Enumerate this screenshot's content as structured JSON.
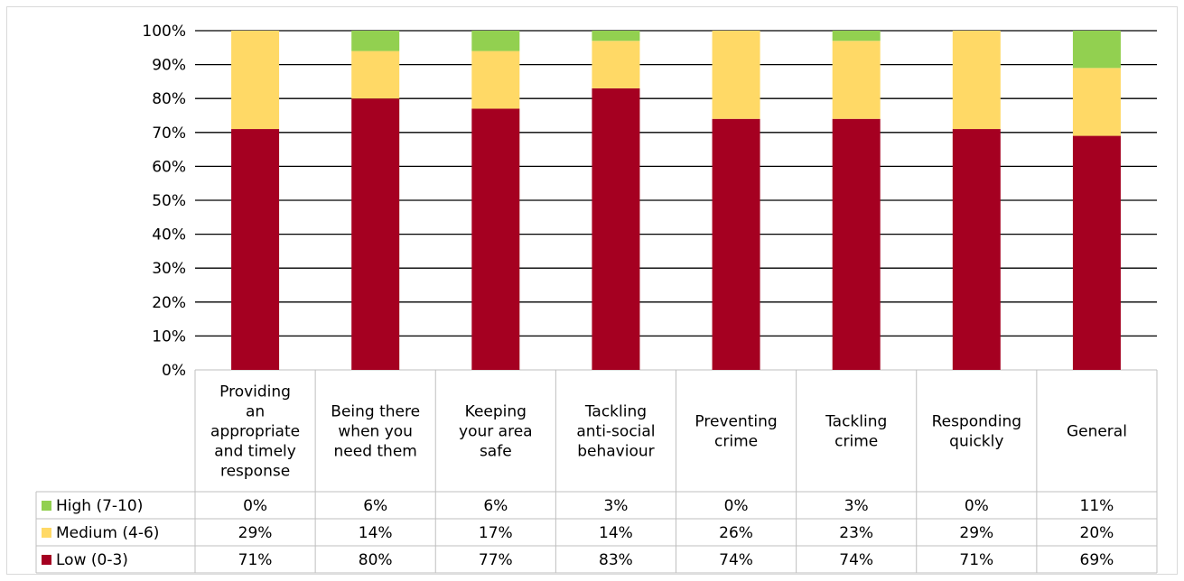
{
  "chart_data": {
    "type": "bar",
    "stacked": true,
    "categories": [
      [
        "Providing",
        "an",
        "appropriate",
        "and timely",
        "response"
      ],
      [
        "Being there",
        "when you",
        "need them"
      ],
      [
        "Keeping",
        "your area",
        "safe"
      ],
      [
        "Tackling",
        "anti-social",
        "behaviour"
      ],
      [
        "Preventing",
        "crime"
      ],
      [
        "Tackling",
        "crime"
      ],
      [
        "Responding",
        "quickly"
      ],
      [
        "General"
      ]
    ],
    "series": [
      {
        "name": "Low (0-3)",
        "color": "#a50021",
        "values": [
          71,
          80,
          77,
          83,
          74,
          74,
          71,
          69
        ],
        "labels": [
          "71%",
          "80%",
          "77%",
          "83%",
          "74%",
          "74%",
          "71%",
          "69%"
        ]
      },
      {
        "name": "Medium (4-6)",
        "color": "#ffd966",
        "values": [
          29,
          14,
          17,
          14,
          26,
          23,
          29,
          20
        ],
        "labels": [
          "29%",
          "14%",
          "17%",
          "14%",
          "26%",
          "23%",
          "29%",
          "20%"
        ]
      },
      {
        "name": "High (7-10)",
        "color": "#92d050",
        "values": [
          0,
          6,
          6,
          3,
          0,
          3,
          0,
          11
        ],
        "labels": [
          "0%",
          "6%",
          "6%",
          "3%",
          "0%",
          "3%",
          "0%",
          "11%"
        ]
      }
    ],
    "table_row_order": [
      "High (7-10)",
      "Medium (4-6)",
      "Low (0-3)"
    ],
    "y_ticks": [
      "0%",
      "10%",
      "20%",
      "30%",
      "40%",
      "50%",
      "60%",
      "70%",
      "80%",
      "90%",
      "100%"
    ],
    "ylim": [
      0,
      100
    ],
    "grid": true,
    "legend": "data-table"
  }
}
